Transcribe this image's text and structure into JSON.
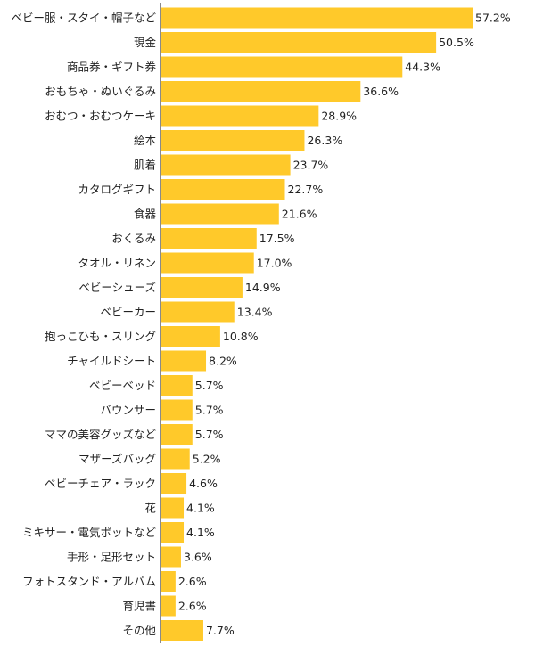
{
  "colors": {
    "bar": "#ffc92a",
    "axis": "#8a8a8a",
    "text": "#222222"
  },
  "chart_data": {
    "type": "bar",
    "orientation": "horizontal",
    "title": "",
    "xlabel": "",
    "ylabel": "",
    "xlim": [
      0,
      60
    ],
    "value_suffix": "%",
    "grid": false,
    "legend": "none",
    "categories": [
      "ベビー服・スタイ・帽子など",
      "現金",
      "商品券・ギフト券",
      "おもちゃ・ぬいぐるみ",
      "おむつ・おむつケーキ",
      "絵本",
      "肌着",
      "カタログギフト",
      "食器",
      "おくるみ",
      "タオル・リネン",
      "ベビーシューズ",
      "ベビーカー",
      "抱っこひも・スリング",
      "チャイルドシート",
      "ベビーベッド",
      "バウンサー",
      "ママの美容グッズなど",
      "マザーズバッグ",
      "ベビーチェア・ラック",
      "花",
      "ミキサー・電気ポットなど",
      "手形・足形セット",
      "フォトスタンド・アルバム",
      "育児書",
      "その他"
    ],
    "values": [
      57.2,
      50.5,
      44.3,
      36.6,
      28.9,
      26.3,
      23.7,
      22.7,
      21.6,
      17.5,
      17.0,
      14.9,
      13.4,
      10.8,
      8.2,
      5.7,
      5.7,
      5.7,
      5.2,
      4.6,
      4.1,
      4.1,
      3.6,
      2.6,
      2.6,
      7.7
    ],
    "value_labels": [
      "57.2%",
      "50.5%",
      "44.3%",
      "36.6%",
      "28.9%",
      "26.3%",
      "23.7%",
      "22.7%",
      "21.6%",
      "17.5%",
      "17.0%",
      "14.9%",
      "13.4%",
      "10.8%",
      "8.2%",
      "5.7%",
      "5.7%",
      "5.7%",
      "5.2%",
      "4.6%",
      "4.1%",
      "4.1%",
      "3.6%",
      "2.6%",
      "2.6%",
      "7.7%"
    ]
  }
}
